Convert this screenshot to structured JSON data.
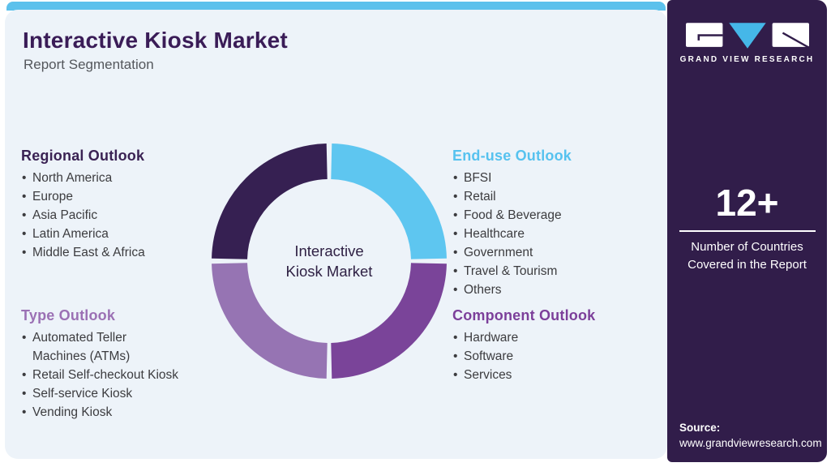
{
  "page": {
    "title": "Interactive Kiosk Market",
    "subtitle": "Report Segmentation"
  },
  "colors": {
    "top_bar_blue": "#5cc1ec",
    "card_background": "#edf3f9",
    "sidebar_background": "#311d4a",
    "title_purple": "#3a1c57",
    "subtitle_gray": "#54575c",
    "body_text": "#3c3c3f",
    "logo_v_blue": "#45b7e8"
  },
  "sections": [
    {
      "id": "regional",
      "heading": "Regional Outlook",
      "color": "#3a2253",
      "items": [
        "North America",
        "Europe",
        "Asia Pacific",
        "Latin America",
        "Middle East & Africa"
      ]
    },
    {
      "id": "type",
      "heading": "Type Outlook",
      "color": "#9b70b4",
      "items": [
        "Automated Teller Machines (ATMs)",
        "Retail Self-checkout Kiosk",
        "Self-service Kiosk",
        "Vending Kiosk"
      ]
    },
    {
      "id": "enduse",
      "heading": "End-use Outlook",
      "color": "#56c2ef",
      "items": [
        "BFSI",
        "Retail",
        "Food & Beverage",
        "Healthcare",
        "Government",
        "Travel & Tourism",
        "Others"
      ]
    },
    {
      "id": "component",
      "heading": "Component Outlook",
      "color": "#7c3f9a",
      "items": [
        "Hardware",
        "Software",
        "Services"
      ]
    }
  ],
  "donut": {
    "center_label_line1": "Interactive",
    "center_label_line2": "Kiosk Market",
    "center_label_color": "#2f2144",
    "segments": [
      {
        "id": "enduse",
        "name": "End-use Outlook",
        "color": "#5ec6f0"
      },
      {
        "id": "component",
        "name": "Component Outlook",
        "color": "#7a4499"
      },
      {
        "id": "type",
        "name": "Type Outlook",
        "color": "#9674b3"
      },
      {
        "id": "regional",
        "name": "Regional Outlook",
        "color": "#362052"
      }
    ]
  },
  "sidebar": {
    "logo_text": "GRAND VIEW RESEARCH",
    "stat_value": "12+",
    "stat_label_line1": "Number of Countries",
    "stat_label_line2": "Covered in the Report",
    "source_label": "Source:",
    "source_url": "www.grandviewresearch.com"
  }
}
